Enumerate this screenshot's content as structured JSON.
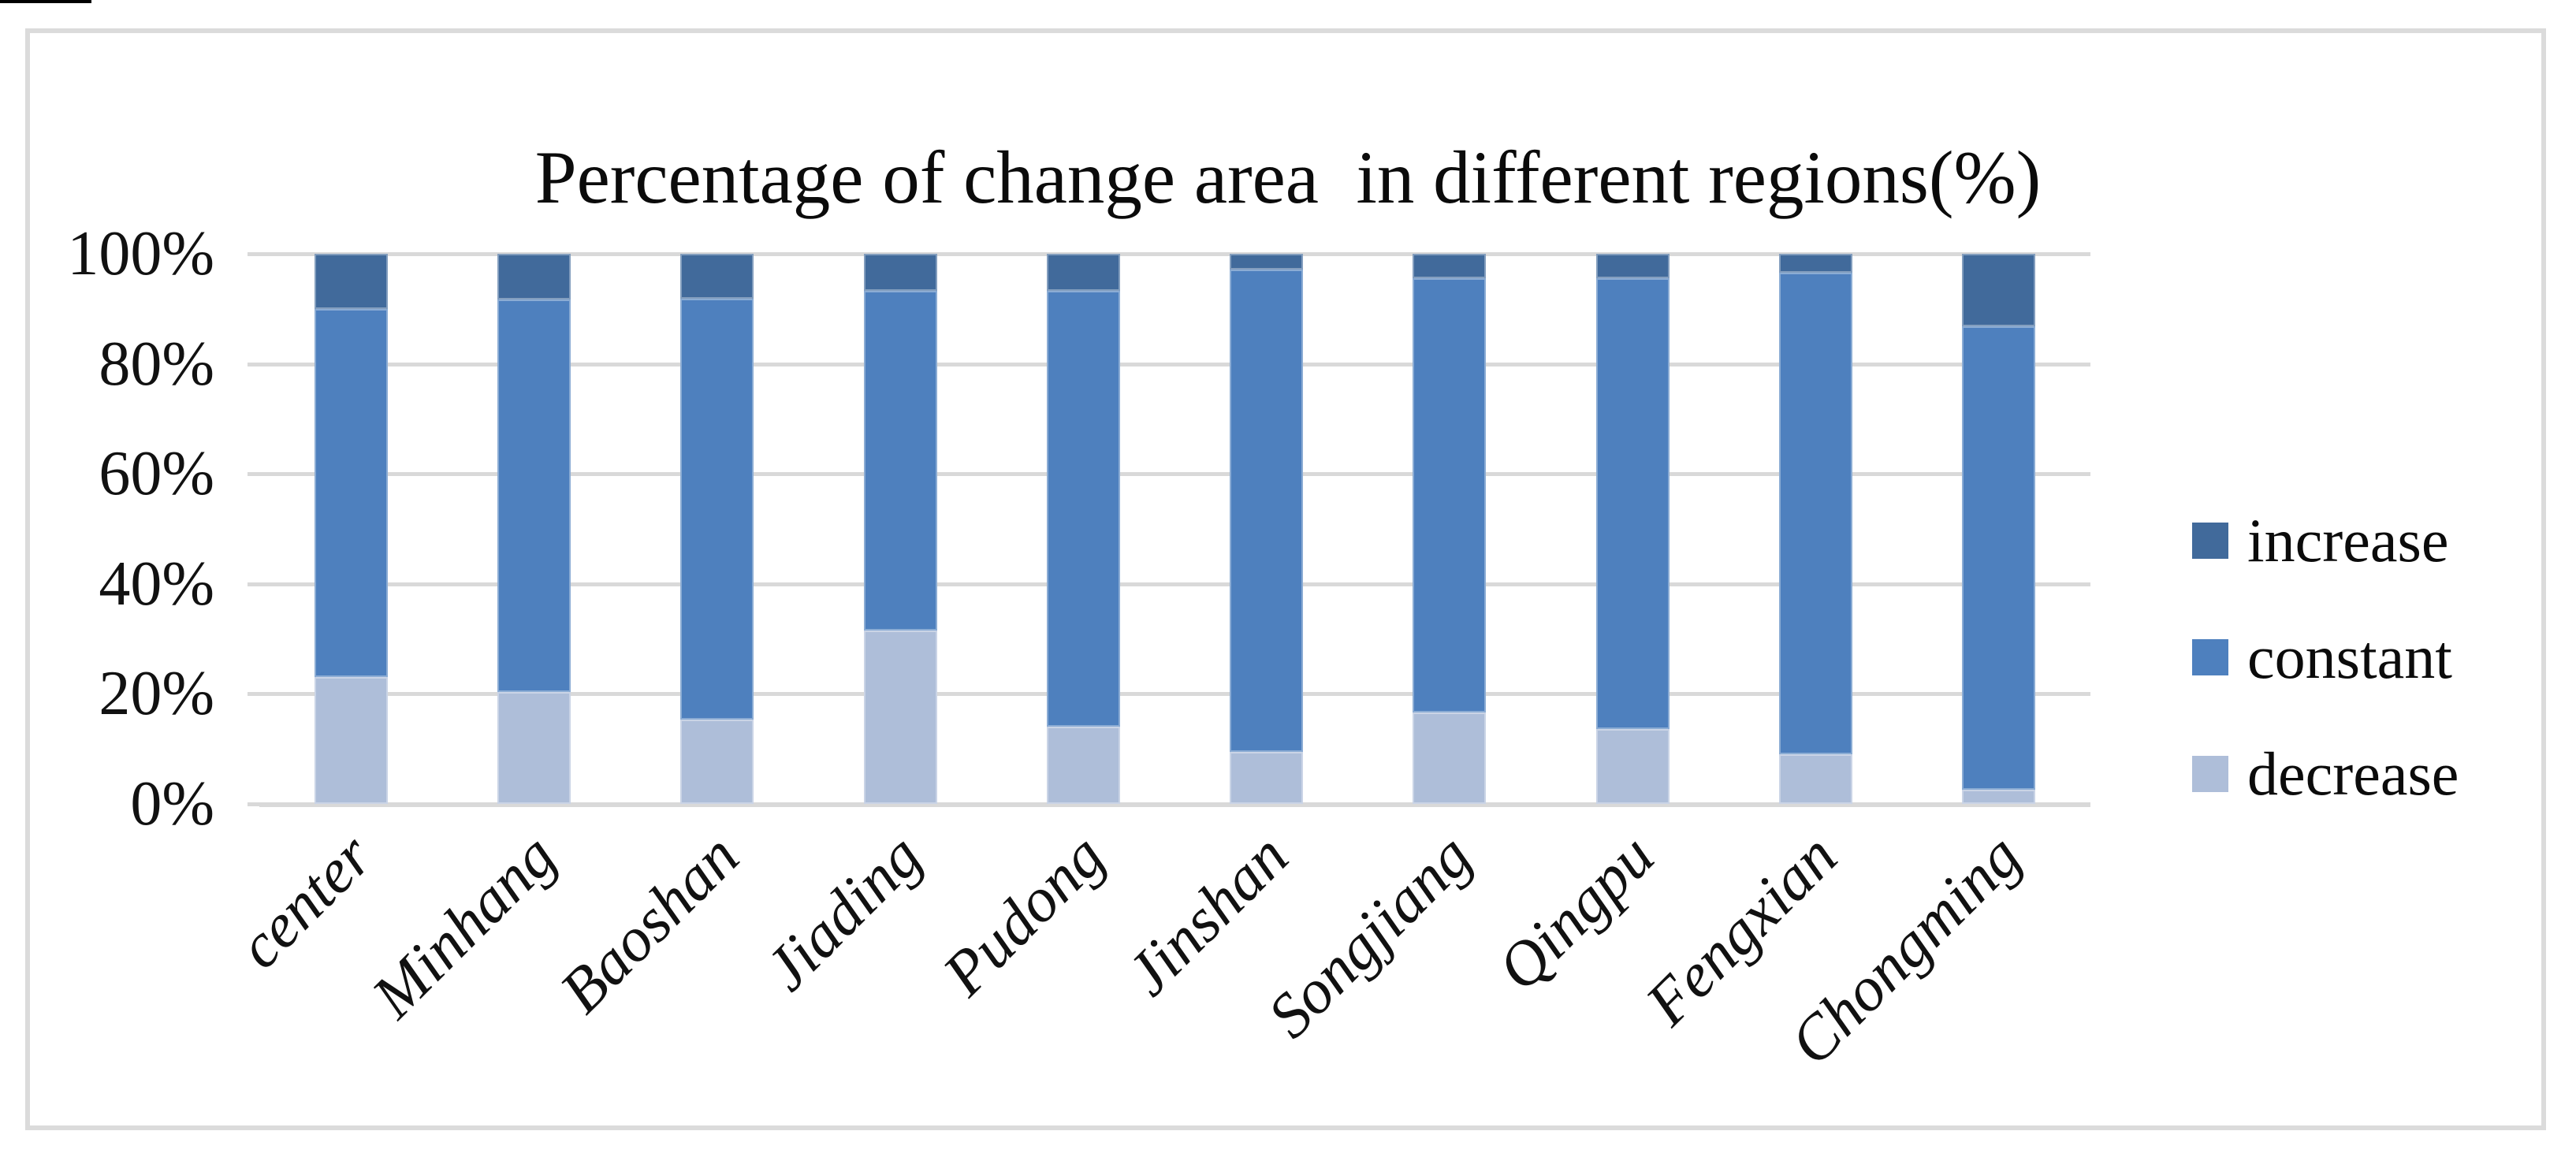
{
  "chart_data": {
    "type": "bar",
    "variant": "stacked-100-percent-column",
    "title": "Percentage of change area  in different regions(%)",
    "categories": [
      "center",
      "Minhang",
      "Baoshan",
      "Jiading",
      "Pudong",
      "Jinshan",
      "Songjiang",
      "Qingpu",
      "Fengxian",
      "Chongming"
    ],
    "series": [
      {
        "name": "decrease",
        "color": "#AEBED9",
        "values": [
          23.0,
          20.3,
          15.3,
          31.5,
          14.0,
          9.4,
          16.6,
          13.6,
          9.0,
          2.6
        ]
      },
      {
        "name": "constant",
        "color": "#4E80BE",
        "values": [
          67.0,
          71.4,
          76.5,
          61.7,
          79.2,
          87.7,
          78.9,
          82.0,
          87.5,
          84.2
        ]
      },
      {
        "name": "increase",
        "color": "#416A9B",
        "values": [
          10.0,
          8.3,
          8.2,
          6.8,
          6.8,
          2.9,
          4.5,
          4.4,
          3.5,
          13.2
        ]
      }
    ],
    "y_ticks": [
      "100%",
      "80%",
      "60%",
      "40%",
      "20%",
      "0%"
    ],
    "ylim": [
      0,
      100
    ],
    "xlabel": "",
    "ylabel": "",
    "grid": true,
    "gridline_color": "#D9D9D9",
    "legend_position": "right",
    "legend": [
      "increase",
      "constant",
      "decrease"
    ],
    "text_color": "#0b0b0b",
    "border_color": "#DBDBDB"
  }
}
